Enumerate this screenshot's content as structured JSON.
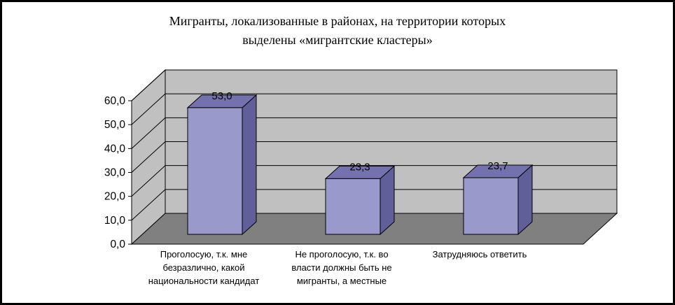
{
  "title": {
    "lines": [
      "Мигранты, локализованные в районах, на территории которых",
      "выделены «мигрантские кластеры»"
    ]
  },
  "chart_data": {
    "type": "bar",
    "style": "3d-column",
    "title": "Мигранты, локализованные в районах, на территории которых выделены «мигрантские кластеры»",
    "categories": [
      [
        "Проголосую, т.к. мне",
        "безразлично, какой",
        "национальности кандидат"
      ],
      [
        "Не проголосую, т.к. во",
        "власти должны быть не",
        "мигранты, а местные"
      ],
      [
        "Затрудняюсь ответить"
      ]
    ],
    "values": [
      53.0,
      23.3,
      23.7
    ],
    "value_labels": [
      "53,0",
      "23,3",
      "23,7"
    ],
    "yticks": {
      "values": [
        0,
        10,
        20,
        30,
        40,
        50,
        60
      ],
      "labels": [
        "0,0",
        "10,0",
        "20,0",
        "30,0",
        "40,0",
        "50,0",
        "60,0"
      ]
    },
    "ylim": [
      0,
      60
    ],
    "xlabel": "",
    "ylabel": "",
    "grid": true,
    "legend": null,
    "colors": {
      "bar_front": "#9999CC",
      "bar_top": "#7472AE",
      "bar_side": "#615F99",
      "wall": "#C0C0C0",
      "floor": "#808080",
      "gridline": "#000000",
      "outline": "#000000",
      "text": "#000000",
      "background": "#FFFFFF"
    }
  }
}
